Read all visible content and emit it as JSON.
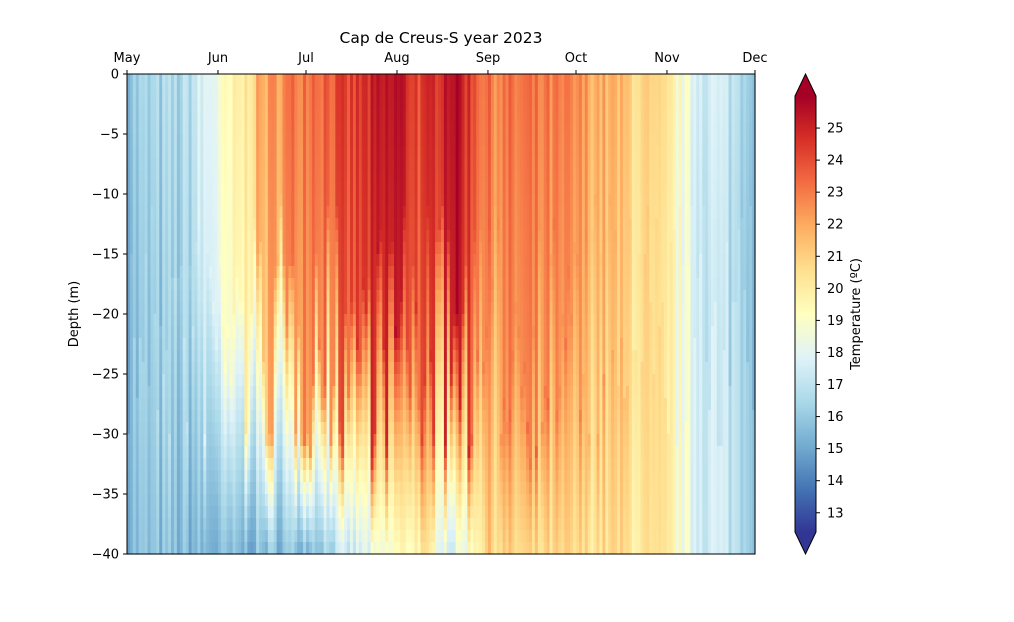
{
  "chart_data": {
    "type": "heatmap",
    "title": "Cap de Creus-S year 2023",
    "xlabel": "",
    "ylabel": "Depth (m)",
    "x_ticks": [
      "May",
      "Jun",
      "Jul",
      "Aug",
      "Sep",
      "Oct",
      "Nov",
      "Dec"
    ],
    "x_axis_position": "top",
    "y_ticks": [
      0,
      -5,
      -10,
      -15,
      -20,
      -25,
      -30,
      -35,
      -40
    ],
    "ylim": [
      -40,
      0
    ],
    "xlim": [
      "2023-05-01",
      "2023-12-01"
    ],
    "colorbar": {
      "label": "Temperature (ºC)",
      "ticks": [
        13,
        14,
        15,
        16,
        17,
        18,
        19,
        20,
        21,
        22,
        23,
        24,
        25
      ],
      "range": [
        12.4,
        26.0
      ],
      "colormap": "RdYlBu_r",
      "extend": "both",
      "under_color": "#313695",
      "over_color": "#a50026"
    },
    "approx_surface_temperature_profile": [
      {
        "date": "2023-05-01",
        "surface": 16.0,
        "bottom": 15.6
      },
      {
        "date": "2023-05-20",
        "surface": 16.5,
        "bottom": 15.5
      },
      {
        "date": "2023-06-01",
        "surface": 18.5,
        "bottom": 15.3
      },
      {
        "date": "2023-06-10",
        "surface": 20.0,
        "bottom": 15.3
      },
      {
        "date": "2023-06-15",
        "surface": 21.8,
        "bottom": 15.5
      },
      {
        "date": "2023-07-01",
        "surface": 23.5,
        "bottom": 15.8
      },
      {
        "date": "2023-07-15",
        "surface": 24.0,
        "bottom": 17.0
      },
      {
        "date": "2023-08-01",
        "surface": 25.5,
        "bottom": 19.0
      },
      {
        "date": "2023-08-10",
        "surface": 24.0,
        "bottom": 20.0
      },
      {
        "date": "2023-08-20",
        "surface": 26.0,
        "bottom": 17.5
      },
      {
        "date": "2023-09-01",
        "surface": 23.0,
        "bottom": 21.0
      },
      {
        "date": "2023-09-15",
        "surface": 23.0,
        "bottom": 20.5
      },
      {
        "date": "2023-10-01",
        "surface": 22.5,
        "bottom": 20.5
      },
      {
        "date": "2023-10-15",
        "surface": 21.5,
        "bottom": 20.5
      },
      {
        "date": "2023-11-01",
        "surface": 20.0,
        "bottom": 19.8
      },
      {
        "date": "2023-11-10",
        "surface": 18.0,
        "bottom": 17.9
      },
      {
        "date": "2023-12-01",
        "surface": 16.5,
        "bottom": 16.5
      }
    ]
  }
}
